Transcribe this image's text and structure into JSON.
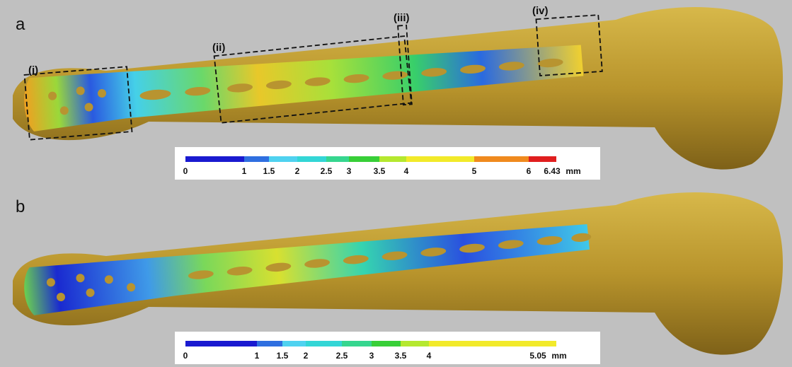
{
  "panels": [
    {
      "label": "a",
      "regions": [
        "(i)",
        "(ii)",
        "(iii)",
        "(iv)"
      ],
      "colorbar": {
        "ticks": [
          0,
          1,
          1.5,
          2,
          2.5,
          3,
          3.5,
          4,
          5,
          6,
          6.43
        ],
        "unit": "mm",
        "colors": [
          "#1a1ad0",
          "#2f6fe0",
          "#4fd2f0",
          "#33d6d6",
          "#36d68f",
          "#38cf38",
          "#b5e82f",
          "#f2ea2a",
          "#f08a1e",
          "#e01e1e"
        ]
      }
    },
    {
      "label": "b",
      "colorbar": {
        "ticks": [
          0,
          1,
          1.5,
          2,
          2.5,
          3,
          3.5,
          4,
          5.05
        ],
        "unit": "mm",
        "colors": [
          "#1a1ad0",
          "#2f6fe0",
          "#4fd2f0",
          "#33d6d6",
          "#36d68f",
          "#38cf38",
          "#b5e82f",
          "#f2ea2a"
        ]
      }
    }
  ]
}
